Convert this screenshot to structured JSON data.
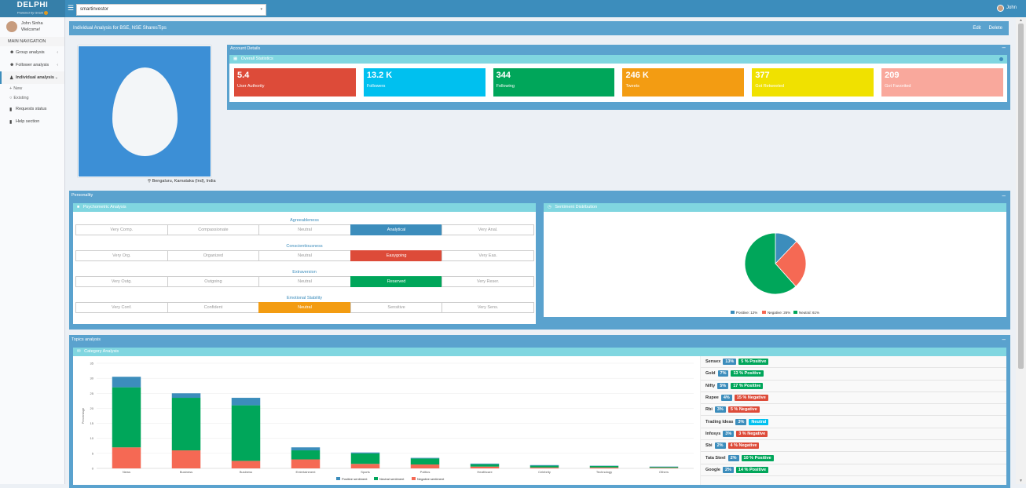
{
  "brand": {
    "title": "DELPHI",
    "subtitle": "Powered by Gnani"
  },
  "header": {
    "account_select": "smartinvestor",
    "user_name": "John"
  },
  "sidebar": {
    "user_name": "John Sinha",
    "user_greeting": "Welcome!",
    "section_title": "MAIN NAVIGATION",
    "items": [
      {
        "label": "Group analysis",
        "icon": "group-icon"
      },
      {
        "label": "Follower analysis",
        "icon": "users-icon"
      },
      {
        "label": "Individual analysis",
        "icon": "user-icon"
      },
      {
        "label": "Requests status",
        "icon": "book-icon"
      },
      {
        "label": "Help section",
        "icon": "book-icon"
      }
    ],
    "sub_items": [
      {
        "label": "New"
      },
      {
        "label": "Existing"
      }
    ]
  },
  "page": {
    "title": "Individual Analysis for BSE, NSE SharesTips",
    "edit_label": "Edit",
    "delete_label": "Delete"
  },
  "profile": {
    "location": "Bengaluru, Karnataka (Ind), India"
  },
  "account": {
    "title": "Account Details",
    "stats_title": "Overall Statistics",
    "stats": [
      {
        "value": "5.4",
        "label": "User Authority",
        "color": "#dd4b39"
      },
      {
        "value": "13.2 K",
        "label": "Followers",
        "color": "#00c0ef"
      },
      {
        "value": "344",
        "label": "Following",
        "color": "#00a65a"
      },
      {
        "value": "246 K",
        "label": "Tweets",
        "color": "#f39c12"
      },
      {
        "value": "377",
        "label": "Got Retweeted",
        "color": "#f0e100"
      },
      {
        "value": "209",
        "label": "Got Favorited",
        "color": "#f9a89c"
      }
    ]
  },
  "personality": {
    "title": "Personality",
    "psy_title": "Psychometric Analysis",
    "traits": [
      {
        "name": "Agreeableness",
        "options": [
          "Very Comp.",
          "Compassionate",
          "Neutral",
          "Analytical",
          "Very Anal."
        ],
        "selected": 3,
        "color": "#3c8dbc"
      },
      {
        "name": "Conscientiousness",
        "options": [
          "Very Org.",
          "Organized",
          "Neutral",
          "Easygoing",
          "Very Eas."
        ],
        "selected": 3,
        "color": "#dd4b39"
      },
      {
        "name": "Extraversion",
        "options": [
          "Very Outg.",
          "Outgoing",
          "Neutral",
          "Reserved",
          "Very Reser."
        ],
        "selected": 3,
        "color": "#00a65a"
      },
      {
        "name": "Emotional Stability",
        "options": [
          "Very Conf.",
          "Confident",
          "Neutral",
          "Sensitive",
          "Very Sens."
        ],
        "selected": 2,
        "color": "#f39c12"
      }
    ],
    "sentiment_title": "Sentiment Distribution",
    "sentiment": [
      {
        "label": "Positive: 12%",
        "value": 12,
        "color": "#3c8dbc"
      },
      {
        "label": "Negative: 26%",
        "value": 26,
        "color": "#f56954"
      },
      {
        "label": "Neutral: 61%",
        "value": 61,
        "color": "#00a65a"
      }
    ]
  },
  "topics": {
    "title": "Topics analysis",
    "cat_title": "Category Analysis",
    "list": [
      {
        "name": "Sensex",
        "share": "13%",
        "sentiment": "5 % Positive",
        "color": "#00a65a"
      },
      {
        "name": "Gold",
        "share": "7%",
        "sentiment": "13 % Positive",
        "color": "#00a65a"
      },
      {
        "name": "Nifty",
        "share": "5%",
        "sentiment": "17 % Positive",
        "color": "#00a65a"
      },
      {
        "name": "Rupee",
        "share": "4%",
        "sentiment": "15 % Negative",
        "color": "#dd4b39"
      },
      {
        "name": "Rbi",
        "share": "3%",
        "sentiment": "5 % Negative",
        "color": "#dd4b39"
      },
      {
        "name": "Trading Ideas",
        "share": "3%",
        "sentiment": "Neutral",
        "color": "#00c0ef"
      },
      {
        "name": "Infosys",
        "share": "3%",
        "sentiment": "3 % Negative",
        "color": "#dd4b39"
      },
      {
        "name": "Sbi",
        "share": "2%",
        "sentiment": "4 % Negative",
        "color": "#dd4b39"
      },
      {
        "name": "Tata Steel",
        "share": "2%",
        "sentiment": "10 % Positive",
        "color": "#00a65a"
      },
      {
        "name": "Google",
        "share": "2%",
        "sentiment": "14 % Positive",
        "color": "#00a65a"
      }
    ]
  },
  "chart_data": {
    "type": "bar",
    "stacked": true,
    "categories": [
      "News",
      "Business",
      "Business",
      "Entertainment",
      "Sports",
      "Politics",
      "Healthcare",
      "Celebrity",
      "Technology",
      "Others"
    ],
    "series": [
      {
        "name": "Positive sentiment",
        "color": "#3c8dbc",
        "values": [
          3.5,
          1.5,
          2.5,
          1.0,
          0.3,
          0.2,
          0.2,
          0.2,
          0.1,
          0.1
        ]
      },
      {
        "name": "Neutral sentiment",
        "color": "#00a65a",
        "values": [
          20,
          17.5,
          18.5,
          3.0,
          3.5,
          2.0,
          0.8,
          0.6,
          0.5,
          0.3
        ]
      },
      {
        "name": "Negative sentiment",
        "color": "#f56954",
        "values": [
          7,
          6,
          2.5,
          3.0,
          1.5,
          1.3,
          0.6,
          0.3,
          0.3,
          0.2
        ]
      }
    ],
    "ylabel": "Percentage",
    "ylim": [
      0,
      35
    ],
    "yticks": [
      "0",
      "5",
      "10",
      "15",
      "20",
      "25",
      "30",
      "35"
    ]
  }
}
